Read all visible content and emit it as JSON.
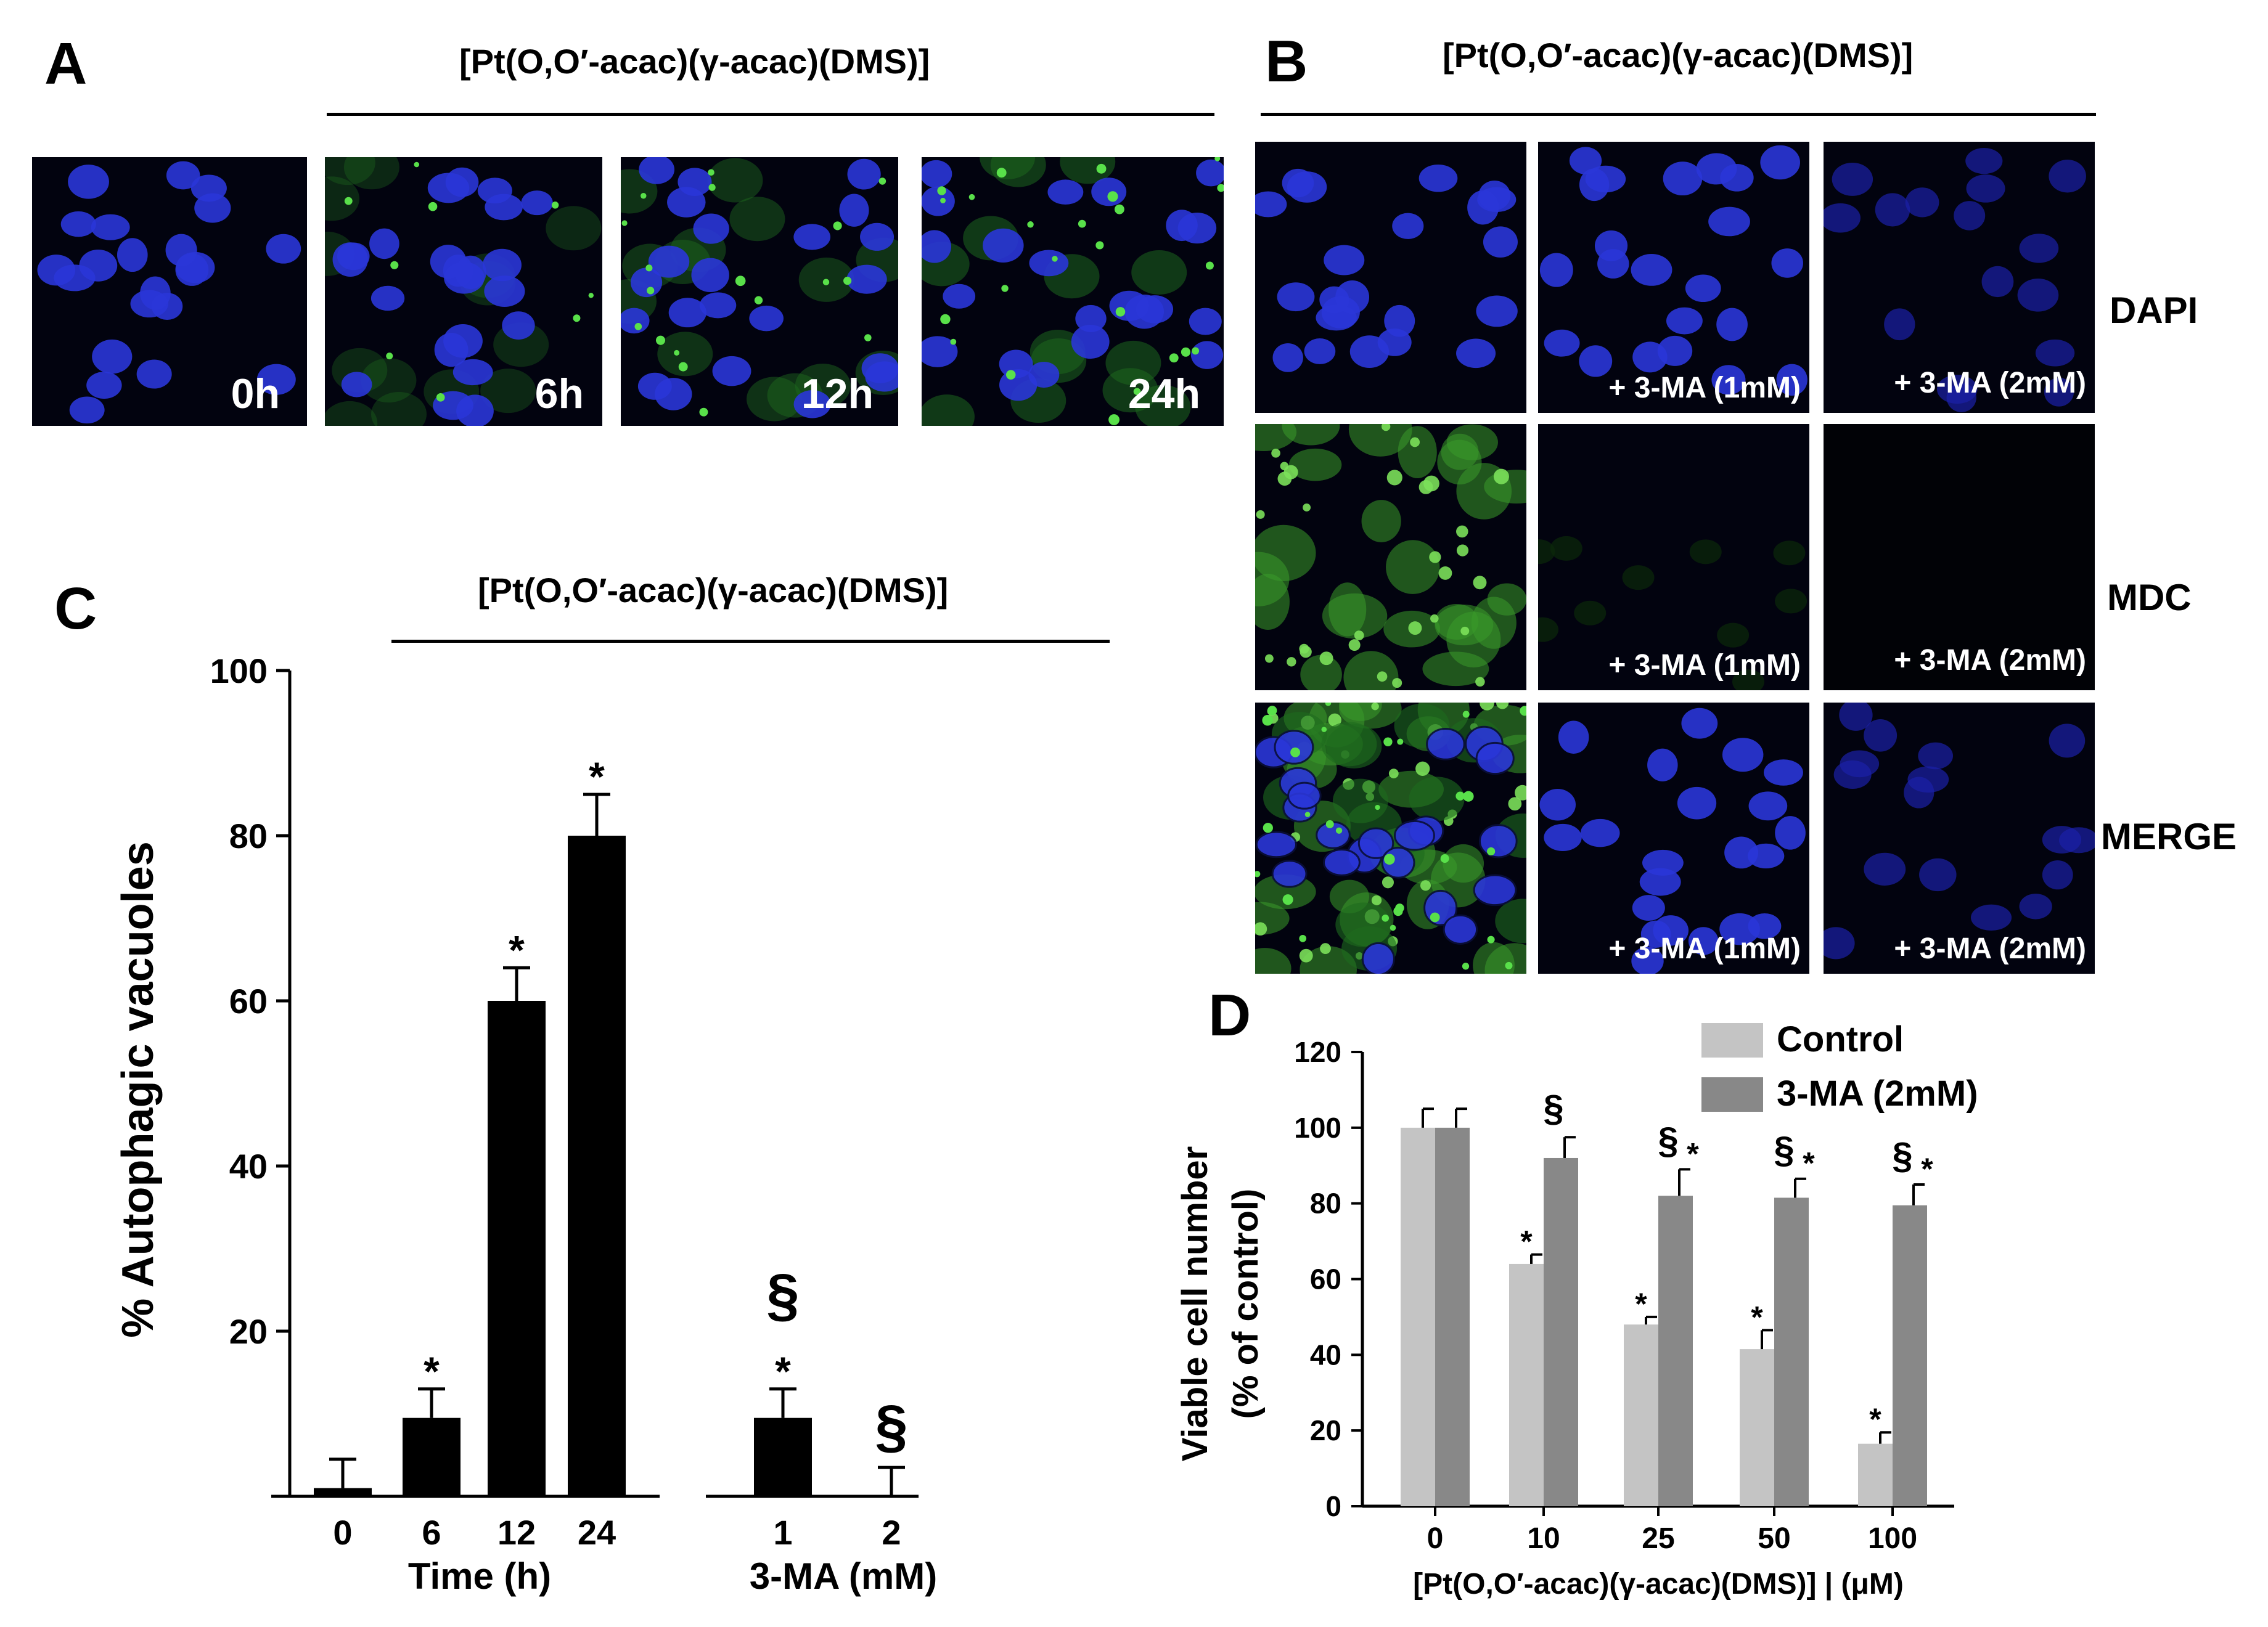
{
  "panel_a": {
    "letter": "A",
    "title": "[Pt(O,O′-acac)(γ-acac)(DMS)]",
    "images": [
      {
        "label": "0h",
        "green_level": 0.0
      },
      {
        "label": "6h",
        "green_level": 0.3
      },
      {
        "label": "12h",
        "green_level": 0.6
      },
      {
        "label": "24h",
        "green_level": 0.8
      }
    ]
  },
  "panel_b": {
    "letter": "B",
    "title": "[Pt(O,O′-acac)(γ-acac)(DMS)]",
    "row_labels": [
      "DAPI",
      "MDC",
      "MERGE"
    ],
    "col_labels": [
      "",
      "+ 3-MA (1mM)",
      "+ 3-MA (2mM)"
    ]
  },
  "panel_c": {
    "letter": "C",
    "title": "[Pt(O,O′-acac)(γ-acac)(DMS)]"
  },
  "panel_d": {
    "letter": "D"
  },
  "chart_data": [
    {
      "type": "bar",
      "panel": "C",
      "ylabel": "% Autophagic vacuoles",
      "ylim": [
        0,
        100
      ],
      "yticks": [
        20,
        40,
        60,
        80,
        100
      ],
      "color": "#000000",
      "groups": [
        {
          "xlabel": "Time (h)",
          "categories": [
            "0",
            "6",
            "12",
            "24"
          ],
          "values": [
            1,
            9.5,
            60,
            80
          ],
          "errors": [
            3.5,
            3.5,
            4,
            5
          ],
          "annotations": [
            "",
            "*",
            "*",
            "*"
          ]
        },
        {
          "xlabel": "3-MA (mM)",
          "categories": [
            "1",
            "2"
          ],
          "values": [
            9.5,
            0
          ],
          "errors": [
            3.5,
            3.5
          ],
          "annotations": [
            "§\n*",
            "§"
          ]
        }
      ]
    },
    {
      "type": "bar",
      "panel": "D",
      "xlabel": "[Pt(O,O′-acac)(γ-acac)(DMS)] | (μM)",
      "ylabel_line1": "Viable cell number",
      "ylabel_line2": "(% of control)",
      "ylim": [
        0,
        120
      ],
      "yticks": [
        0,
        20,
        40,
        60,
        80,
        100,
        120
      ],
      "categories": [
        "0",
        "10",
        "25",
        "50",
        "100"
      ],
      "series": [
        {
          "name": "Control",
          "color": "#c4c4c4",
          "values": [
            100,
            64,
            48,
            41.5,
            16.5
          ],
          "errors": [
            5,
            2.5,
            2,
            5,
            3
          ],
          "annotations": [
            "",
            "*",
            "*",
            "*",
            "*"
          ]
        },
        {
          "name": "3-MA (2mM)",
          "color": "#888888",
          "values": [
            100,
            92,
            82,
            81.5,
            79.5
          ],
          "errors": [
            5,
            5.5,
            7,
            5,
            5.5
          ],
          "annotations": [
            "",
            "§",
            "§*",
            "§*",
            "§*"
          ]
        }
      ]
    }
  ]
}
